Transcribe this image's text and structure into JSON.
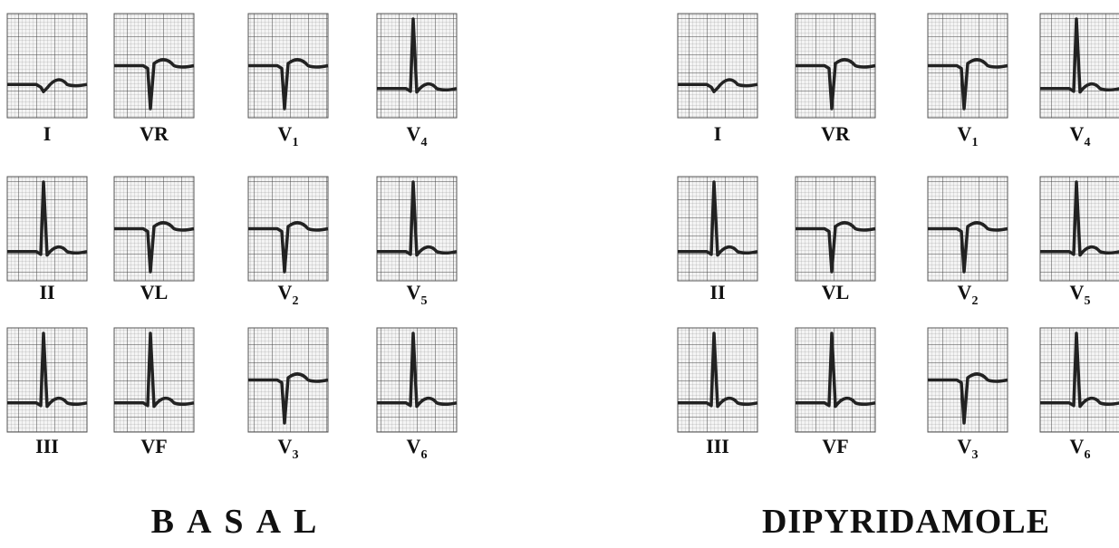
{
  "panels": [
    {
      "title": "BASAL",
      "leads": [
        [
          "I",
          "VR",
          "V1",
          "V4"
        ],
        [
          "II",
          "VL",
          "V2",
          "V5"
        ],
        [
          "III",
          "VF",
          "V3",
          "V6"
        ]
      ]
    },
    {
      "title": "DIPYRIDAMOLE",
      "leads": [
        [
          "I",
          "VR",
          "V1",
          "V4"
        ],
        [
          "II",
          "VL",
          "V2",
          "V5"
        ],
        [
          "III",
          "VF",
          "V3",
          "V6"
        ]
      ]
    }
  ]
}
